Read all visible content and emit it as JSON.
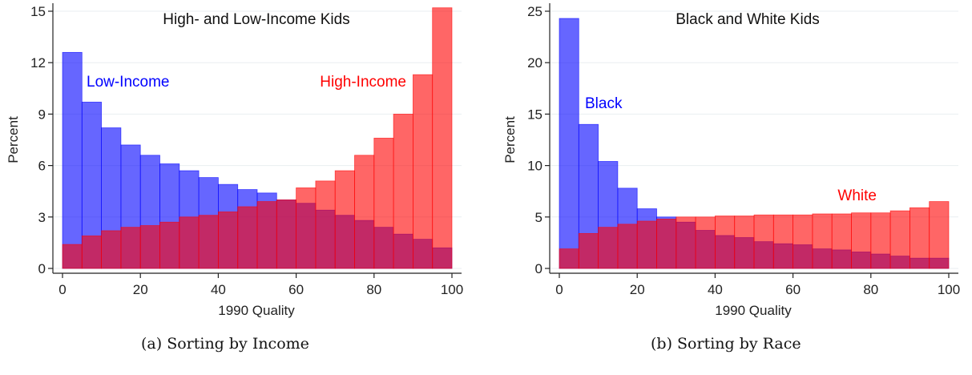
{
  "chart_data": [
    {
      "type": "bar",
      "title": "High- and Low-Income Kids",
      "xlabel": "1990 Quality",
      "ylabel": "Percent",
      "xlim": [
        0,
        100
      ],
      "ylim": [
        0,
        15
      ],
      "xticks": [
        0,
        20,
        40,
        60,
        80,
        100
      ],
      "yticks": [
        0,
        3,
        6,
        9,
        12,
        15
      ],
      "bin_width": 5,
      "bin_starts": [
        0,
        5,
        10,
        15,
        20,
        25,
        30,
        35,
        40,
        45,
        50,
        55,
        60,
        65,
        70,
        75,
        80,
        85,
        90,
        95
      ],
      "grid": true,
      "legend": "direct labels",
      "series": [
        {
          "name": "Low-Income",
          "color": "#0000ff",
          "values": [
            12.6,
            9.7,
            8.2,
            7.2,
            6.6,
            6.1,
            5.7,
            5.3,
            4.9,
            4.6,
            4.4,
            4.0,
            3.8,
            3.4,
            3.1,
            2.8,
            2.4,
            2.0,
            1.7,
            1.2
          ]
        },
        {
          "name": "High-Income",
          "color": "#ff0000",
          "values": [
            1.4,
            1.9,
            2.2,
            2.4,
            2.5,
            2.7,
            3.0,
            3.1,
            3.3,
            3.6,
            3.9,
            4.0,
            4.7,
            5.1,
            5.7,
            6.6,
            7.6,
            9.0,
            11.3,
            15.2
          ]
        }
      ],
      "caption": "(a) Sorting by Income"
    },
    {
      "type": "bar",
      "title": "Black and White Kids",
      "xlabel": "1990 Quality",
      "ylabel": "Percent",
      "xlim": [
        0,
        100
      ],
      "ylim": [
        0,
        25
      ],
      "xticks": [
        0,
        20,
        40,
        60,
        80,
        100
      ],
      "yticks": [
        0,
        5,
        10,
        15,
        20,
        25
      ],
      "bin_width": 5,
      "bin_starts": [
        0,
        5,
        10,
        15,
        20,
        25,
        30,
        35,
        40,
        45,
        50,
        55,
        60,
        65,
        70,
        75,
        80,
        85,
        90,
        95
      ],
      "grid": true,
      "legend": "direct labels",
      "series": [
        {
          "name": "Black",
          "color": "#0000ff",
          "values": [
            24.3,
            14.0,
            10.4,
            7.8,
            5.8,
            5.0,
            4.5,
            3.7,
            3.2,
            3.0,
            2.6,
            2.4,
            2.3,
            1.9,
            1.8,
            1.6,
            1.4,
            1.2,
            1.0,
            1.0
          ]
        },
        {
          "name": "White",
          "color": "#ff0000",
          "values": [
            1.9,
            3.4,
            4.0,
            4.3,
            4.6,
            4.8,
            5.0,
            5.0,
            5.1,
            5.1,
            5.2,
            5.2,
            5.2,
            5.3,
            5.3,
            5.4,
            5.4,
            5.6,
            5.9,
            6.5
          ]
        }
      ],
      "caption": "(b) Sorting by Race"
    }
  ]
}
